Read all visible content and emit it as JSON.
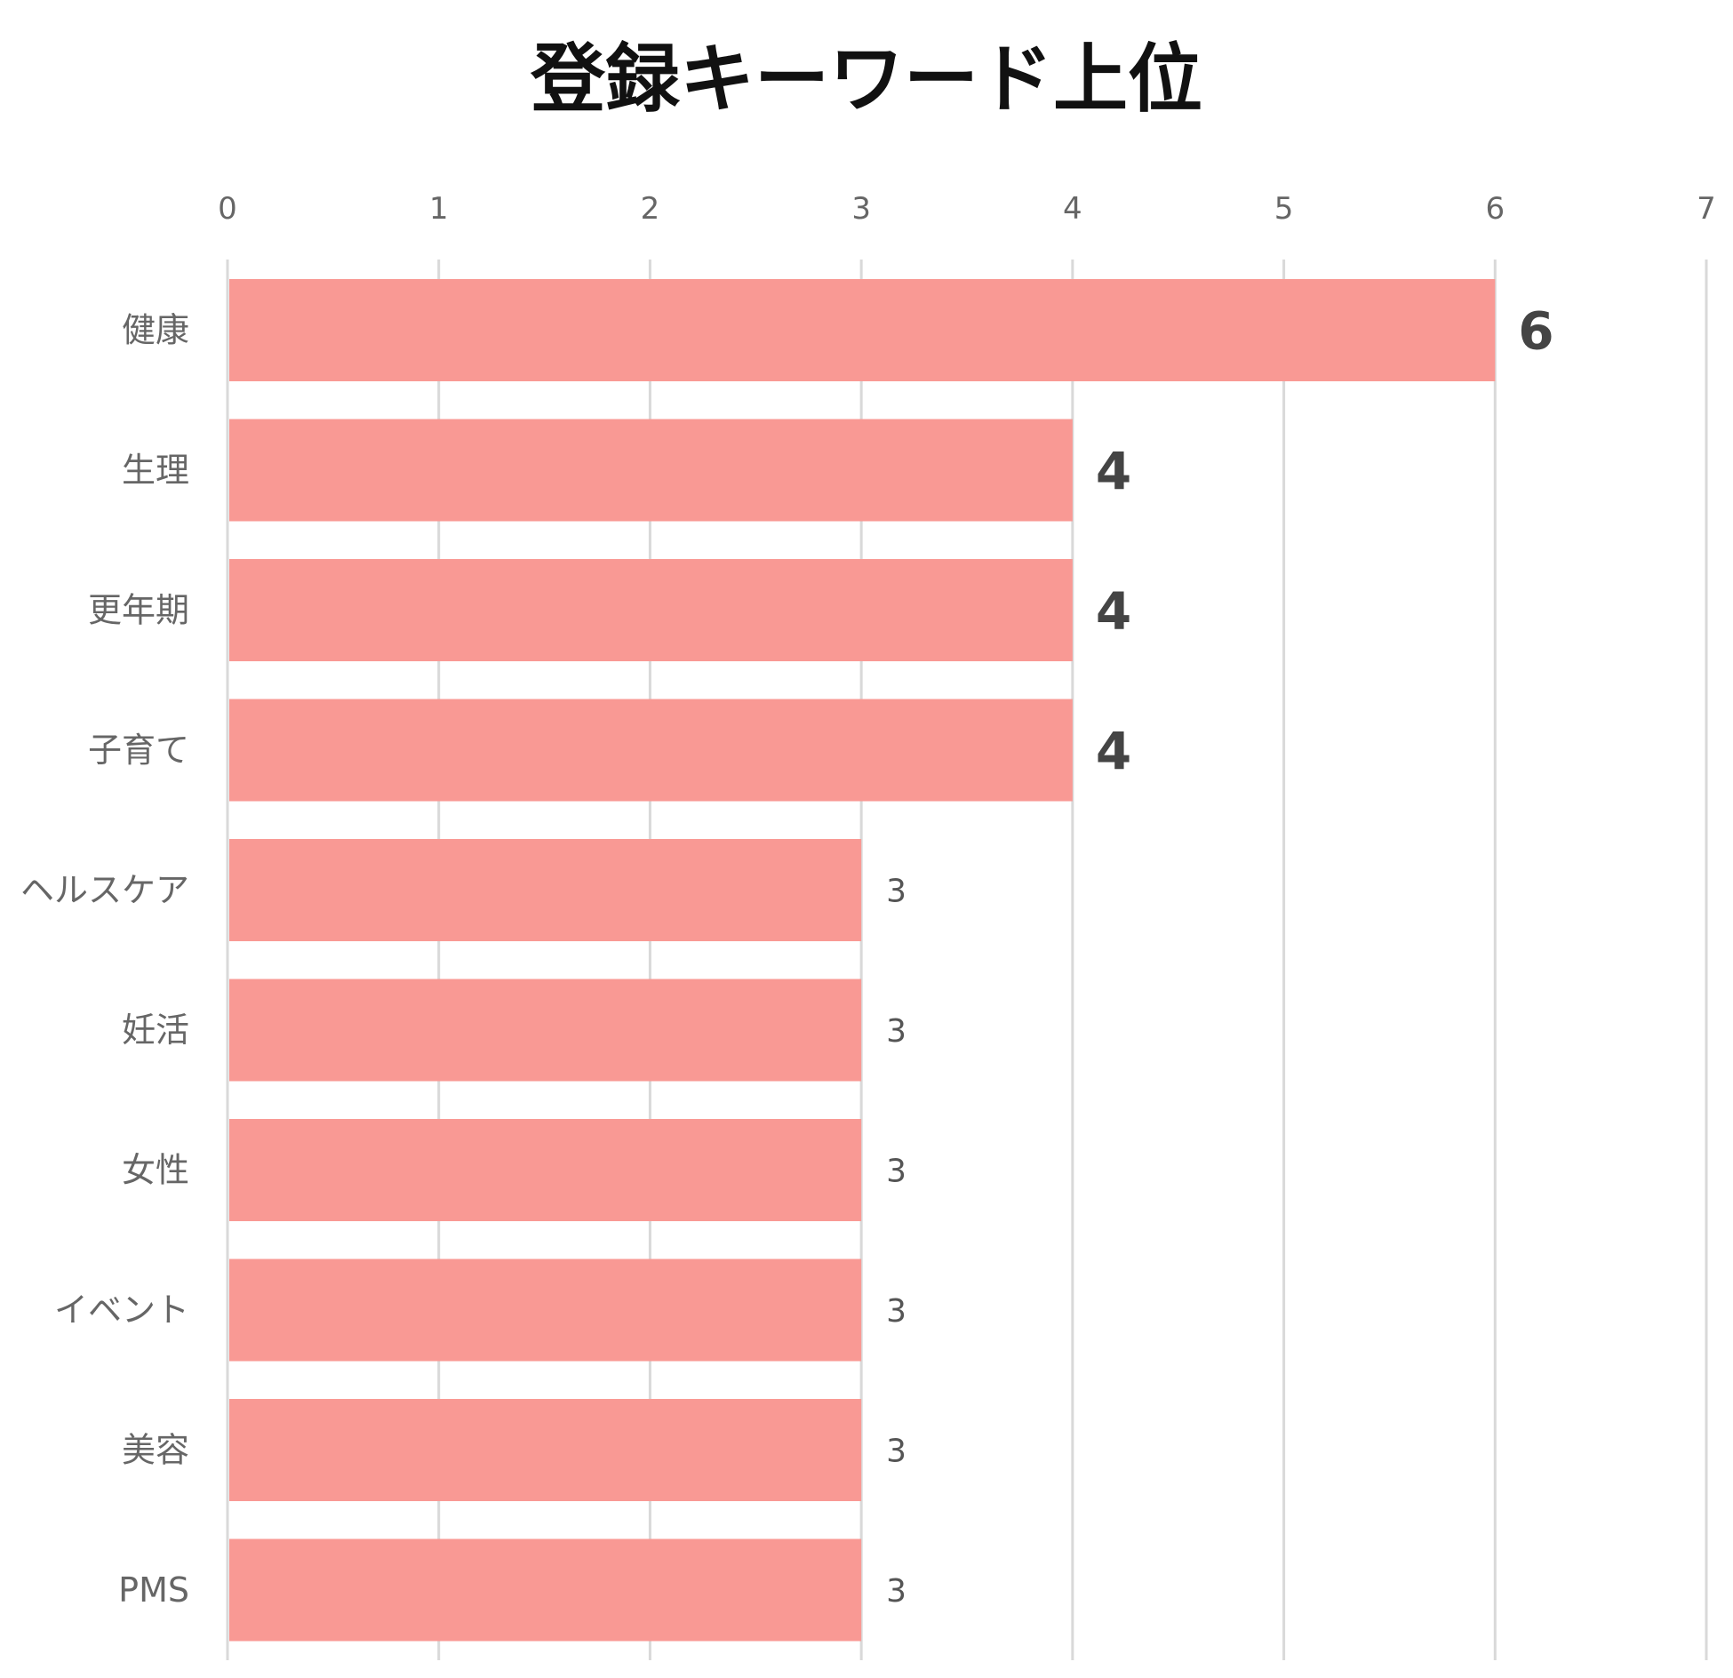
{
  "chart_data": {
    "type": "bar",
    "orientation": "horizontal",
    "title": "登録キーワード上位",
    "categories": [
      "健康",
      "生理",
      "更年期",
      "子育て",
      "ヘルスケア",
      "妊活",
      "女性",
      "イベント",
      "美容",
      "PMS"
    ],
    "values": [
      6,
      4,
      4,
      4,
      3,
      3,
      3,
      3,
      3,
      3
    ],
    "x_ticks": [
      "0",
      "1",
      "2",
      "3",
      "4",
      "5",
      "6",
      "7"
    ],
    "xlim": [
      0,
      7
    ],
    "xaxis_position": "top",
    "grid": true,
    "bar_color": "#f99994",
    "grid_color": "#d9d9d9",
    "emphasized_min_value": 4
  }
}
